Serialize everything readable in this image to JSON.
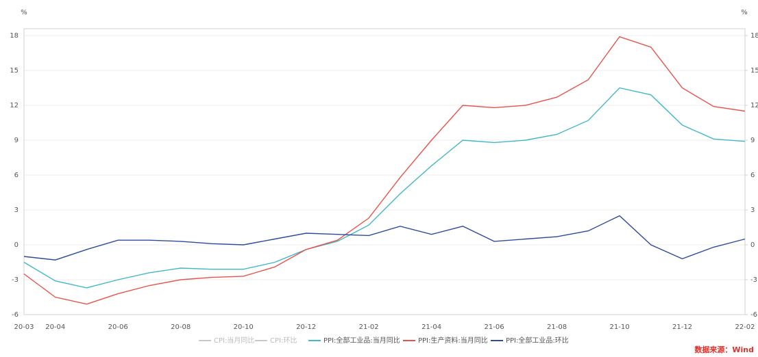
{
  "chart_data": {
    "type": "line",
    "yunit": "%",
    "y2unit": "%",
    "categories": [
      "20-03",
      "20-04",
      null,
      "20-06",
      null,
      "20-08",
      null,
      "20-10",
      null,
      "20-12",
      null,
      "21-02",
      null,
      "21-04",
      null,
      "21-06",
      null,
      "21-08",
      null,
      "21-10",
      null,
      "21-12",
      null,
      "22-02"
    ],
    "ylim": [
      -6,
      18
    ],
    "yticks": [
      -6,
      -3,
      0,
      3,
      6,
      9,
      12,
      15,
      18
    ],
    "y2lim": [
      -6,
      18
    ],
    "y2ticks": [
      -6,
      -3,
      0,
      3,
      6,
      9,
      12,
      15,
      18
    ],
    "grid": true,
    "series": [
      {
        "name": "CPI:当月同比",
        "color": "#c8c8c8",
        "values": [
          null,
          null,
          null,
          null,
          null,
          null,
          null,
          null,
          null,
          null,
          null,
          null,
          null,
          null,
          null,
          null,
          null,
          null,
          null,
          null,
          null,
          null,
          null,
          null
        ]
      },
      {
        "name": "CPI:环比",
        "color": "#c8c8c8",
        "values": [
          null,
          null,
          null,
          null,
          null,
          null,
          null,
          null,
          null,
          null,
          null,
          null,
          null,
          null,
          null,
          null,
          null,
          null,
          null,
          null,
          null,
          null,
          null,
          null
        ]
      },
      {
        "name": "PPI:全部工业品:当月同比",
        "color": "#3fb8c8",
        "values": [
          -1.5,
          -3.1,
          -3.7,
          -3.0,
          -2.4,
          -2.0,
          -2.1,
          -2.1,
          -1.5,
          -0.4,
          0.3,
          1.7,
          4.4,
          6.8,
          9.0,
          8.8,
          9.0,
          9.5,
          10.7,
          13.5,
          12.9,
          10.3,
          9.1,
          8.9
        ]
      },
      {
        "name": "PPI:生产资料:当月同比",
        "color": "#e8524a",
        "values": [
          -2.5,
          -4.5,
          -5.1,
          -4.2,
          -3.5,
          -3.0,
          -2.8,
          -2.7,
          -1.9,
          -0.4,
          0.4,
          2.3,
          5.8,
          9.0,
          12.0,
          11.8,
          12.0,
          12.7,
          14.2,
          17.9,
          17.0,
          13.5,
          11.9,
          11.5
        ]
      },
      {
        "name": "PPI:全部工业品:环比",
        "color": "#2e4a9e",
        "values": [
          -1.0,
          -1.3,
          -0.4,
          0.4,
          0.4,
          0.3,
          0.1,
          0.0,
          0.5,
          1.0,
          0.9,
          0.8,
          1.6,
          0.9,
          1.6,
          0.3,
          0.5,
          0.7,
          1.2,
          2.5,
          0.0,
          -1.2,
          -0.2,
          0.5
        ]
      }
    ],
    "source": "数据来源：Wind"
  }
}
